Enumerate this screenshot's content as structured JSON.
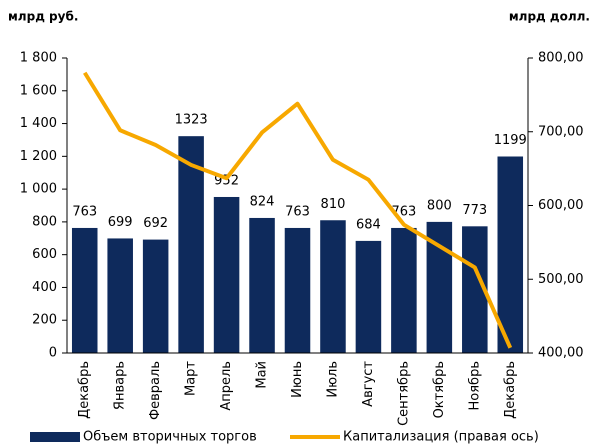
{
  "chart_data": {
    "type": "bar",
    "y_label": "млрд руб.",
    "y2_label": "млрд долл.",
    "categories": [
      "Декабрь",
      "Январь",
      "Февраль",
      "Март",
      "Апрель",
      "Май",
      "Июнь",
      "Июль",
      "Август",
      "Сентябрь",
      "Октябрь",
      "Ноябрь",
      "Декабрь"
    ],
    "series": [
      {
        "name": "Объем вторичных торгов",
        "type": "bar",
        "color": "#0e2a5c",
        "values": [
          763,
          699,
          692,
          1323,
          952,
          824,
          763,
          810,
          684,
          763,
          800,
          773,
          1199
        ]
      },
      {
        "name": "Капитализация (правая ось)",
        "type": "line",
        "axis": "y2",
        "color": "#f7a800",
        "values": [
          780,
          702,
          682,
          655,
          637,
          699,
          738,
          662,
          635,
          574,
          545,
          516,
          407
        ]
      }
    ],
    "ylim": [
      0,
      1800
    ],
    "yticks": [
      0,
      200,
      400,
      600,
      800,
      {
        "value": 1000,
        "label": "1 000"
      },
      {
        "value": 1200,
        "label": "1 200"
      },
      {
        "value": 1400,
        "label": "1 400"
      },
      {
        "value": 1600,
        "label": "1 600"
      },
      {
        "value": 1800,
        "label": "1 800"
      }
    ],
    "y2lim": [
      400,
      800
    ],
    "y2ticks": [
      {
        "value": 400,
        "label": "400,00"
      },
      {
        "value": 500,
        "label": "500,00"
      },
      {
        "value": 600,
        "label": "600,00"
      },
      {
        "value": 700,
        "label": "700,00"
      },
      {
        "value": 800,
        "label": "800,00"
      }
    ],
    "grid": false
  }
}
